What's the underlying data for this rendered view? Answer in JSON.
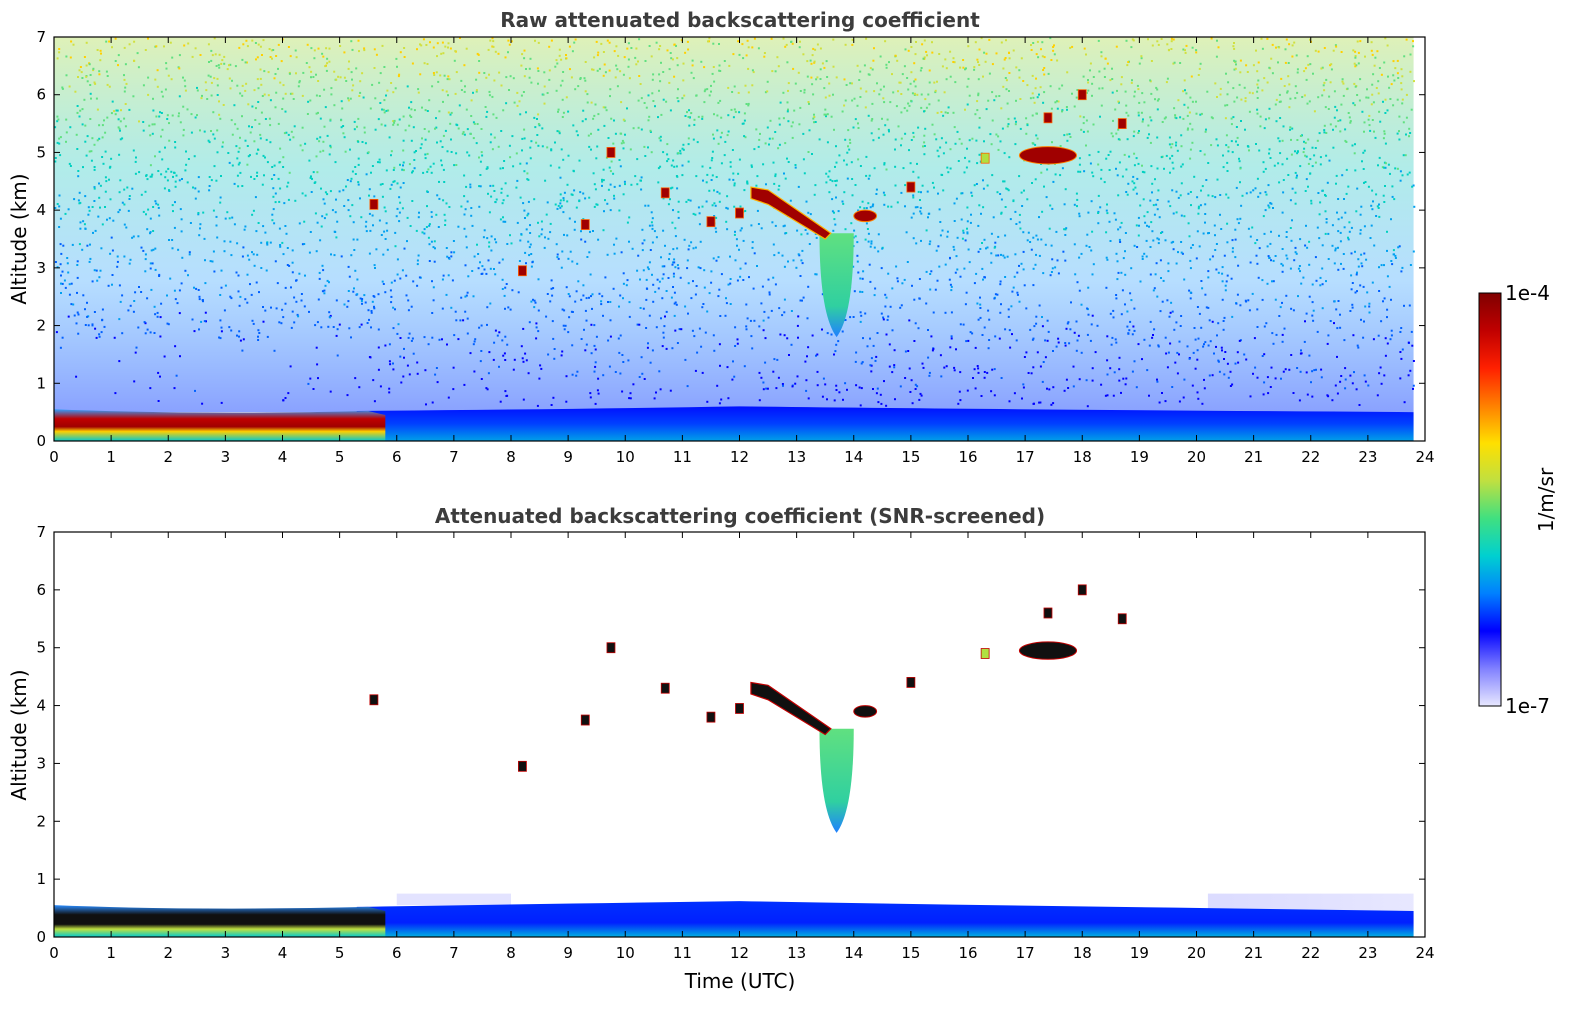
{
  "chart_data": [
    {
      "type": "heatmap",
      "title": "Raw attenuated backscattering coefficient",
      "xlabel": "",
      "ylabel": "Altitude (km)",
      "xlim": [
        0,
        24
      ],
      "ylim": [
        0,
        7
      ],
      "xticks": [
        0,
        1,
        2,
        3,
        4,
        5,
        6,
        7,
        8,
        9,
        10,
        11,
        12,
        13,
        14,
        15,
        16,
        17,
        18,
        19,
        20,
        21,
        22,
        23,
        24
      ],
      "yticks": [
        0,
        1,
        2,
        3,
        4,
        5,
        6,
        7
      ],
      "layers": [
        {
          "name": "boundary layer aerosol",
          "t": [
            0,
            5.5
          ],
          "z": [
            0,
            0.55
          ],
          "level": "high"
        },
        {
          "name": "near-surface aerosol",
          "t": [
            5.5,
            23.8
          ],
          "z": [
            0,
            0.55
          ],
          "level": "low-mid"
        },
        {
          "name": "noise background",
          "t": [
            0,
            23.8
          ],
          "z": [
            0.5,
            7
          ],
          "level": "noise"
        }
      ],
      "features": [
        {
          "t": [
            13.4,
            14.0
          ],
          "z": [
            1.8,
            3.6
          ],
          "level": "mid"
        },
        {
          "t": [
            12.2,
            13.6
          ],
          "z": [
            3.5,
            4.4
          ],
          "level": "high"
        },
        {
          "t": [
            16.9,
            17.9
          ],
          "z": [
            4.8,
            5.1
          ],
          "level": "high"
        },
        {
          "t": [
            14.0,
            14.4
          ],
          "z": [
            3.8,
            4.0
          ],
          "level": "high"
        }
      ]
    },
    {
      "type": "heatmap",
      "title": "Attenuated backscattering coefficient (SNR-screened)",
      "xlabel": "Time (UTC)",
      "ylabel": "Altitude (km)",
      "xlim": [
        0,
        24
      ],
      "ylim": [
        0,
        7
      ],
      "xticks": [
        0,
        1,
        2,
        3,
        4,
        5,
        6,
        7,
        8,
        9,
        10,
        11,
        12,
        13,
        14,
        15,
        16,
        17,
        18,
        19,
        20,
        21,
        22,
        23,
        24
      ],
      "yticks": [
        0,
        1,
        2,
        3,
        4,
        5,
        6,
        7
      ],
      "layers": [
        {
          "name": "boundary layer aerosol",
          "t": [
            0,
            5.5
          ],
          "z": [
            0,
            0.55
          ],
          "level": "high"
        },
        {
          "name": "near-surface aerosol",
          "t": [
            5.5,
            23.8
          ],
          "z": [
            0,
            0.6
          ],
          "level": "low-mid"
        }
      ],
      "features": [
        {
          "t": [
            13.4,
            14.0
          ],
          "z": [
            1.8,
            3.6
          ],
          "level": "mid"
        },
        {
          "t": [
            12.2,
            13.6
          ],
          "z": [
            3.5,
            4.4
          ],
          "level": "saturated"
        },
        {
          "t": [
            16.9,
            17.9
          ],
          "z": [
            4.8,
            5.1
          ],
          "level": "saturated"
        },
        {
          "t": [
            14.0,
            14.4
          ],
          "z": [
            3.8,
            4.0
          ],
          "level": "saturated"
        }
      ]
    }
  ],
  "colorbar": {
    "label": "1/m/sr",
    "max_label": "1e-4",
    "min_label": "1e-7",
    "scale": "log",
    "colormap": [
      "#e8e8ff",
      "#8080ff",
      "#0000ff",
      "#0080ff",
      "#00d0d0",
      "#40e080",
      "#c0e040",
      "#ffe000",
      "#ff8000",
      "#ff2000",
      "#c00000",
      "#800000"
    ]
  }
}
